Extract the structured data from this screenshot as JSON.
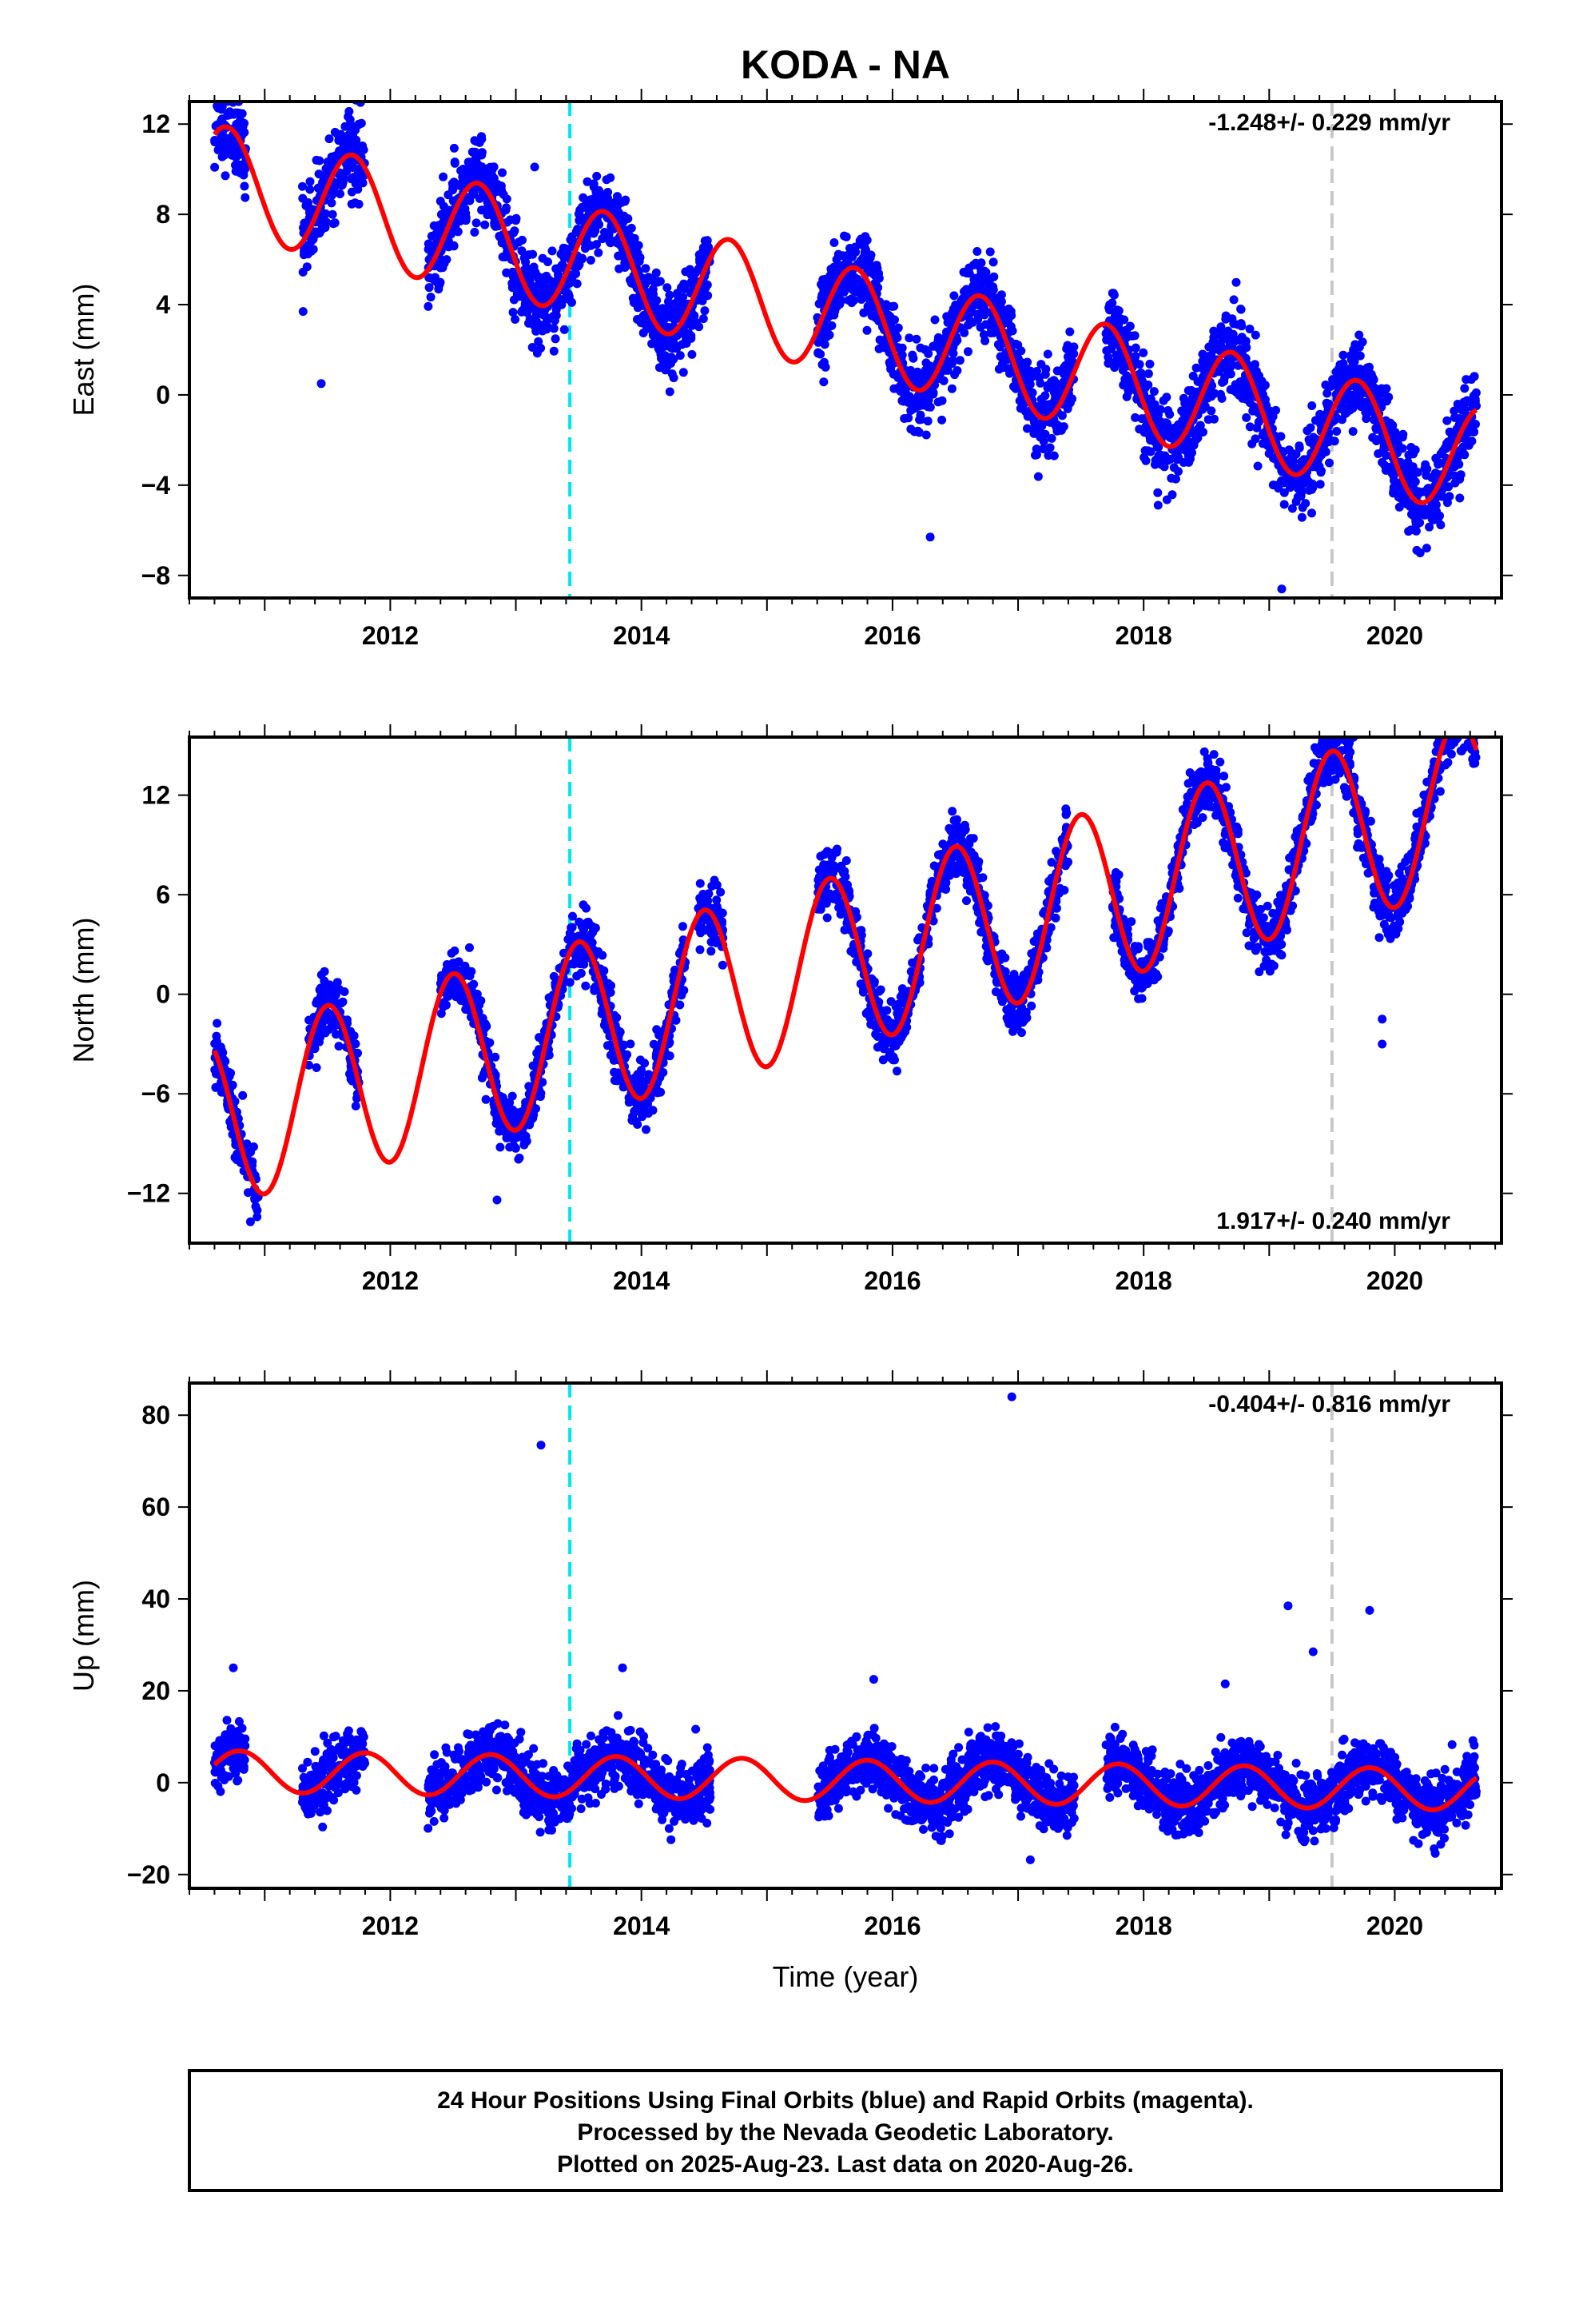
{
  "title": "KODA - NA",
  "x_label": "Time (year)",
  "footer": {
    "line1": "24 Hour Positions Using Final Orbits (blue) and Rapid Orbits (magenta).",
    "line2": "Processed by the Nevada Geodetic Laboratory.",
    "line3": "Plotted on 2025-Aug-23. Last data on 2020-Aug-26."
  },
  "colors": {
    "data_points": "#0000ff",
    "model_line": "#ff0000",
    "event_line_cyan": "#00e5ee",
    "event_line_gray": "#c8c8c8"
  },
  "chart_data": [
    {
      "type": "scatter",
      "component": "East",
      "ylabel": "East (mm)",
      "rate_label": "-1.248+/- 0.229 mm/yr",
      "rate_position": "top-right",
      "xlim": [
        2010.4,
        2020.85
      ],
      "ylim": [
        -9,
        13
      ],
      "xticks": [
        2012,
        2014,
        2016,
        2018,
        2020
      ],
      "yticks": [
        -8,
        -4,
        0,
        4,
        8,
        12
      ],
      "trend": {
        "rate": -1.248,
        "value_2010_6": 9.6
      },
      "seasonal": {
        "annual_amplitude": 2.4,
        "phase_peak": 0.7
      },
      "scatter_sigma": 0.9,
      "data_segments": [
        [
          2010.6,
          2010.85
        ],
        [
          2011.3,
          2011.8
        ],
        [
          2012.3,
          2013.45
        ],
        [
          2013.45,
          2014.55
        ],
        [
          2015.4,
          2016.95
        ],
        [
          2016.95,
          2017.45
        ],
        [
          2017.7,
          2019.45
        ],
        [
          2019.45,
          2020.65
        ]
      ],
      "model_segments": [
        [
          2010.6,
          2020.65
        ]
      ],
      "outliers": [
        [
          2010.62,
          12.8
        ],
        [
          2013.15,
          10.1
        ],
        [
          2011.75,
          12.0
        ],
        [
          2019.1,
          -8.6
        ],
        [
          2016.3,
          -6.3
        ],
        [
          2011.45,
          0.5
        ]
      ],
      "event_lines": [
        {
          "x": 2013.43,
          "color": "cyan"
        },
        {
          "x": 2019.5,
          "color": "gray"
        }
      ]
    },
    {
      "type": "scatter",
      "component": "North",
      "ylabel": "North (mm)",
      "rate_label": "1.917+/- 0.240 mm/yr",
      "rate_position": "bottom-right",
      "xlim": [
        2010.4,
        2020.85
      ],
      "ylim": [
        -15,
        15.5
      ],
      "xticks": [
        2012,
        2014,
        2016,
        2018,
        2020
      ],
      "yticks": [
        -12,
        -6,
        0,
        6,
        12
      ],
      "trend": {
        "rate": 1.917,
        "value_2010_6": -7.6
      },
      "seasonal": {
        "annual_amplitude": 5.2,
        "phase_peak": 0.5
      },
      "scatter_sigma": 0.9,
      "data_segments": [
        [
          2010.6,
          2010.95
        ],
        [
          2011.35,
          2011.75
        ],
        [
          2012.4,
          2013.15
        ],
        [
          2013.15,
          2014.35
        ],
        [
          2014.45,
          2014.65
        ],
        [
          2015.4,
          2016.95
        ],
        [
          2016.95,
          2017.4
        ],
        [
          2017.75,
          2019.45
        ],
        [
          2019.45,
          2020.65
        ]
      ],
      "model_segments": [
        [
          2010.6,
          2020.65
        ]
      ],
      "outliers": [
        [
          2020.45,
          15.0
        ],
        [
          2019.4,
          14.5
        ],
        [
          2019.9,
          -3.0
        ],
        [
          2019.9,
          -1.5
        ],
        [
          2012.85,
          -12.4
        ]
      ],
      "event_lines": [
        {
          "x": 2013.43,
          "color": "cyan"
        },
        {
          "x": 2019.5,
          "color": "gray"
        }
      ]
    },
    {
      "type": "scatter",
      "component": "Up",
      "ylabel": "Up (mm)",
      "rate_label": "-0.404+/- 0.816 mm/yr",
      "rate_position": "top-right",
      "xlim": [
        2010.4,
        2020.85
      ],
      "ylim": [
        -23,
        87
      ],
      "xticks": [
        2012,
        2014,
        2016,
        2018,
        2020
      ],
      "yticks": [
        -20,
        0,
        20,
        40,
        60,
        80
      ],
      "trend": {
        "rate": -0.404,
        "value_2010_6": 2.5
      },
      "seasonal": {
        "annual_amplitude": 4.5,
        "phase_peak": 0.8
      },
      "scatter_sigma": 3.2,
      "data_segments": [
        [
          2010.6,
          2010.85
        ],
        [
          2011.3,
          2011.8
        ],
        [
          2012.3,
          2013.45
        ],
        [
          2013.45,
          2014.55
        ],
        [
          2015.4,
          2016.95
        ],
        [
          2016.95,
          2017.45
        ],
        [
          2017.7,
          2019.45
        ],
        [
          2019.45,
          2020.65
        ]
      ],
      "model_segments": [
        [
          2010.6,
          2020.65
        ]
      ],
      "outliers": [
        [
          2010.75,
          25.0
        ],
        [
          2013.2,
          73.5
        ],
        [
          2016.95,
          84.0
        ],
        [
          2013.85,
          25.0
        ],
        [
          2019.15,
          38.5
        ],
        [
          2019.8,
          37.5
        ],
        [
          2019.35,
          28.5
        ],
        [
          2015.85,
          22.5
        ],
        [
          2018.65,
          21.5
        ]
      ],
      "event_lines": [
        {
          "x": 2013.43,
          "color": "cyan"
        },
        {
          "x": 2019.5,
          "color": "gray"
        }
      ]
    }
  ]
}
